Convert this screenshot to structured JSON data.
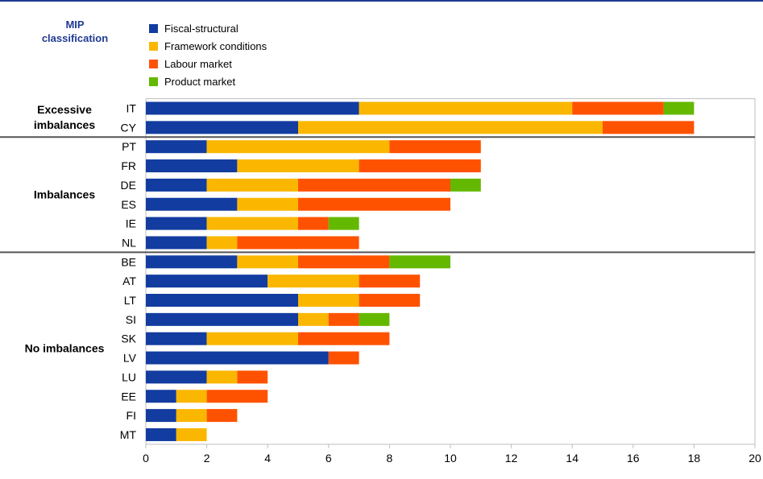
{
  "header": {
    "mip_label_line1": "MIP",
    "mip_label_line2": "classification"
  },
  "colors": {
    "header_accent": "#1f3a93",
    "separator": "#555555"
  },
  "chart_data": {
    "type": "bar",
    "orientation": "horizontal",
    "stacked": true,
    "title": "",
    "xlabel": "",
    "ylabel": "",
    "xlim": [
      0,
      20
    ],
    "xticks": [
      0,
      2,
      4,
      6,
      8,
      10,
      12,
      14,
      16,
      18,
      20
    ],
    "legend_position": "top-left",
    "grid": false,
    "categories": [
      "IT",
      "CY",
      "PT",
      "FR",
      "DE",
      "ES",
      "IE",
      "NL",
      "BE",
      "AT",
      "LT",
      "SI",
      "SK",
      "LV",
      "LU",
      "EE",
      "FI",
      "MT"
    ],
    "series": [
      {
        "name": "Fiscal-structural",
        "color": "#123c9f",
        "values": [
          7,
          5,
          2,
          3,
          2,
          3,
          2,
          2,
          3,
          4,
          5,
          5,
          2,
          6,
          2,
          1,
          1,
          1
        ]
      },
      {
        "name": "Framework conditions",
        "color": "#fbb700",
        "values": [
          7,
          10,
          6,
          4,
          3,
          2,
          3,
          1,
          2,
          3,
          2,
          1,
          3,
          0,
          1,
          1,
          1,
          1
        ]
      },
      {
        "name": "Labour market",
        "color": "#ff5200",
        "values": [
          3,
          3,
          3,
          4,
          5,
          5,
          1,
          4,
          3,
          2,
          2,
          1,
          3,
          1,
          1,
          2,
          1,
          0
        ]
      },
      {
        "name": "Product market",
        "color": "#65b800",
        "values": [
          1,
          0,
          0,
          0,
          1,
          0,
          1,
          0,
          2,
          0,
          0,
          1,
          0,
          0,
          0,
          0,
          0,
          0
        ]
      }
    ],
    "groups": [
      {
        "label": "Excessive imbalances",
        "line1": "Excessive",
        "line2": "imbalances",
        "members": [
          "IT",
          "CY"
        ]
      },
      {
        "label": "Imbalances",
        "line1": "Imbalances",
        "line2": "",
        "members": [
          "PT",
          "FR",
          "DE",
          "ES",
          "IE",
          "NL"
        ]
      },
      {
        "label": "No imbalances",
        "line1": "No imbalances",
        "line2": "",
        "members": [
          "BE",
          "AT",
          "LT",
          "SI",
          "SK",
          "LV",
          "LU",
          "EE",
          "FI",
          "MT"
        ]
      }
    ]
  }
}
